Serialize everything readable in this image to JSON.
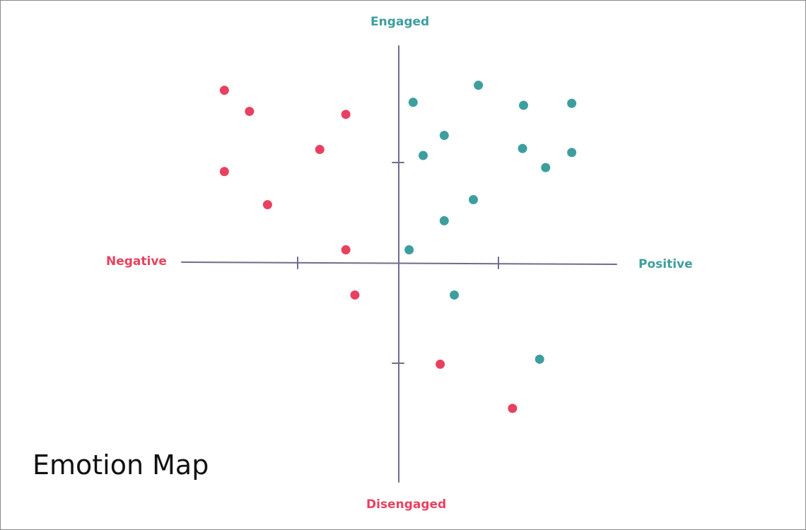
{
  "title": "Emotion Map",
  "chart_data": {
    "type": "scatter",
    "title": "Emotion Map",
    "x_axis": {
      "negative_label": "Negative",
      "positive_label": "Positive",
      "range": [
        -2,
        2
      ]
    },
    "y_axis": {
      "positive_label": "Engaged",
      "negative_label": "Disengaged",
      "range": [
        -2,
        2
      ]
    },
    "grid": false,
    "colors": {
      "negative": "#e8415f",
      "positive": "#3e9e9e",
      "axis": "#6f6c8e"
    },
    "series": [
      {
        "color_key": "negative",
        "points": [
          {
            "x": -1.73,
            "y": 1.72
          },
          {
            "x": -1.48,
            "y": 1.51
          },
          {
            "x": -0.52,
            "y": 1.48
          },
          {
            "x": -0.78,
            "y": 1.13
          },
          {
            "x": -1.73,
            "y": 0.91
          },
          {
            "x": -1.3,
            "y": 0.58
          },
          {
            "x": -0.52,
            "y": 0.13
          },
          {
            "x": -0.43,
            "y": -0.32
          },
          {
            "x": 0.42,
            "y": -1.01
          },
          {
            "x": 1.14,
            "y": -1.45
          }
        ]
      },
      {
        "color_key": "positive",
        "points": [
          {
            "x": 0.15,
            "y": 1.6
          },
          {
            "x": 0.8,
            "y": 1.77
          },
          {
            "x": 1.25,
            "y": 1.57
          },
          {
            "x": 1.73,
            "y": 1.59
          },
          {
            "x": 0.46,
            "y": 1.27
          },
          {
            "x": 0.25,
            "y": 1.07
          },
          {
            "x": 1.24,
            "y": 1.14
          },
          {
            "x": 1.73,
            "y": 1.1
          },
          {
            "x": 1.47,
            "y": 0.95
          },
          {
            "x": 0.75,
            "y": 0.63
          },
          {
            "x": 0.46,
            "y": 0.42
          },
          {
            "x": 0.11,
            "y": 0.13
          },
          {
            "x": 0.56,
            "y": -0.32
          },
          {
            "x": 1.41,
            "y": -0.96
          }
        ]
      }
    ]
  }
}
